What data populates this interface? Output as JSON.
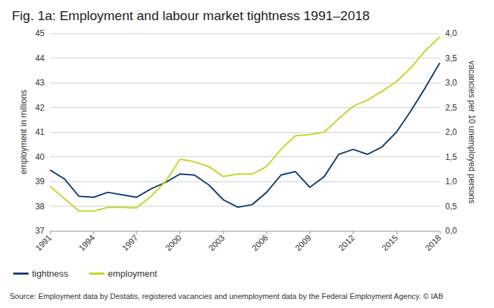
{
  "chart_data": {
    "type": "line",
    "title": "Fig. 1a: Employment and labour market tightness 1991–2018",
    "source": "Source: Employment data by Destatis, registered vacancies and unemployment data by the Federal Employment Agency. © IAB",
    "y_label": "employment in millions",
    "y2_label": "vacancies per 10 unemployed persons",
    "x": [
      1991,
      1992,
      1993,
      1994,
      1995,
      1996,
      1997,
      1998,
      1999,
      2000,
      2001,
      2002,
      2003,
      2004,
      2005,
      2006,
      2007,
      2008,
      2009,
      2010,
      2011,
      2012,
      2013,
      2014,
      2015,
      2016,
      2017,
      2018
    ],
    "xlim": [
      1991,
      2018
    ],
    "xticks": [
      1991,
      1994,
      1997,
      2000,
      2003,
      2006,
      2009,
      2012,
      2015,
      2018
    ],
    "ylim": [
      37,
      45
    ],
    "yticks": [
      37,
      38,
      39,
      40,
      41,
      42,
      43,
      44,
      45
    ],
    "y2lim": [
      0,
      4
    ],
    "y2ticks": [
      {
        "value": 0,
        "label": "0,0"
      },
      {
        "value": 0.5,
        "label": "0,5"
      },
      {
        "value": 1,
        "label": "1,0"
      },
      {
        "value": 1.5,
        "label": "1,5"
      },
      {
        "value": 2,
        "label": "2,0"
      },
      {
        "value": 2.5,
        "label": "2,5"
      },
      {
        "value": 3,
        "label": "3,0"
      },
      {
        "value": 3.5,
        "label": "3,5"
      },
      {
        "value": 4,
        "label": "4,0"
      }
    ],
    "grid": true,
    "legend": "bottom-left",
    "series": [
      {
        "name": "tightness",
        "color": "#0b3d6e",
        "axis": "y2",
        "values": [
          1.23,
          1.05,
          0.7,
          0.68,
          0.78,
          0.73,
          0.68,
          0.85,
          0.98,
          1.15,
          1.13,
          0.93,
          0.63,
          0.48,
          0.53,
          0.78,
          1.13,
          1.2,
          0.88,
          1.1,
          1.55,
          1.65,
          1.55,
          1.7,
          2.0,
          2.43,
          2.9,
          3.4
        ]
      },
      {
        "name": "employment",
        "color": "#c3d520",
        "values": [
          38.8,
          38.3,
          37.8,
          37.8,
          37.95,
          37.95,
          37.93,
          38.4,
          39.0,
          39.9,
          39.8,
          39.6,
          39.2,
          39.3,
          39.3,
          39.6,
          40.3,
          40.85,
          40.9,
          41.0,
          41.55,
          42.05,
          42.3,
          42.65,
          43.05,
          43.6,
          44.3,
          44.85
        ]
      }
    ]
  }
}
